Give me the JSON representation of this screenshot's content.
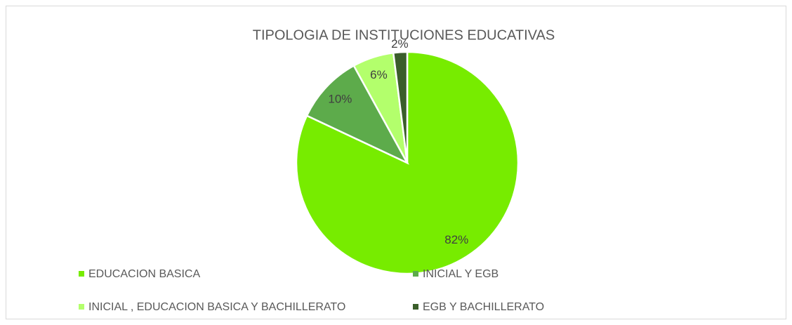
{
  "chart_data": {
    "type": "pie",
    "title": "TIPOLOGIA DE INSTITUCIONES EDUCATIVAS",
    "categories": [
      "EDUCACION BASICA",
      "INICIAL Y EGB",
      "INICIAL , EDUCACION BASICA Y BACHILLERATO",
      "EGB Y BACHILLERATO"
    ],
    "values": [
      82,
      10,
      6,
      2
    ],
    "value_labels": [
      "82%",
      "10%",
      "6%",
      "2%"
    ],
    "colors": [
      "#77ec00",
      "#5dab4b",
      "#b3ff6c",
      "#3a5e2a"
    ],
    "legend": "bottom"
  }
}
